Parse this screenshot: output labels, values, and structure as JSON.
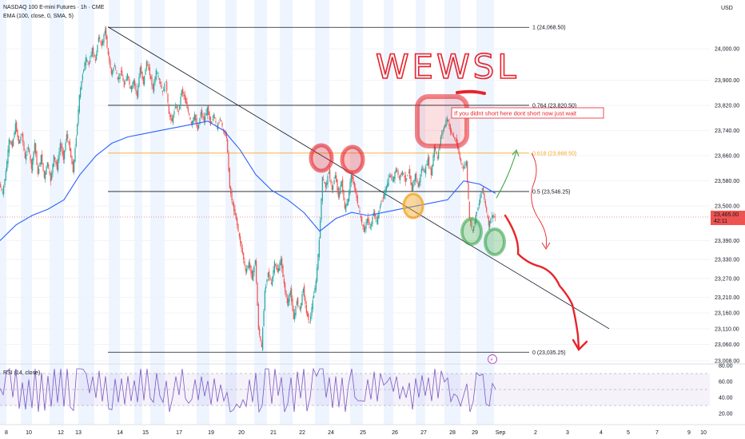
{
  "header": {
    "symbol_line": "NASDAQ 100 E-mini Futures · 1h · CME",
    "indicator_line": "EMA (100, close, 0, SMA, 5)",
    "currency": "USD",
    "rsi_label": "RSI (14, close)"
  },
  "colors": {
    "up": "#26a69a",
    "down": "#ef5350",
    "ema": "#2962ff",
    "rsi": "#7e57c2",
    "fib_618": "#f5a623",
    "ink": "#e8232a",
    "green_ink": "#2e9e3e",
    "session_band": "#e3efff"
  },
  "chart_data": [
    {
      "type": "candlestick",
      "ylim": [
        23008,
        24130
      ],
      "y_ticks": [
        "24,000.00",
        "23,900.00",
        "23,820.00",
        "23,740.00",
        "23,660.00",
        "23,580.00",
        "23,500.00",
        "23,390.00",
        "23,330.00",
        "23,270.00",
        "23,210.00",
        "23,160.00",
        "23,110.00",
        "23,060.00",
        "23,008.00"
      ],
      "x_ticks": [
        "8",
        "10",
        "12",
        "13",
        "14",
        "15",
        "17",
        "19",
        "20",
        "21",
        "22",
        "24",
        "25",
        "26",
        "27",
        "28",
        "29",
        "Sep",
        "2",
        "3",
        "4",
        "5",
        "7",
        "9",
        "10"
      ],
      "price_tag": {
        "value": "23,465.00",
        "countdown": "42:11"
      },
      "fib_levels": [
        {
          "label": "1 (24,068.50)",
          "value": 24068.5
        },
        {
          "label": "0.764 (23,820.50)",
          "value": 23820.5
        },
        {
          "label": "0.618 (23,668.50)",
          "value": 23668.5
        },
        {
          "label": "0.5 (23,546.25)",
          "value": 23546.25
        },
        {
          "label": "0 (23,035.25)",
          "value": 23035.25
        }
      ],
      "price_path": [
        [
          0,
          23570
        ],
        [
          4,
          23540
        ],
        [
          8,
          23610
        ],
        [
          12,
          23710
        ],
        [
          16,
          23690
        ],
        [
          20,
          23760
        ],
        [
          24,
          23700
        ],
        [
          28,
          23730
        ],
        [
          32,
          23650
        ],
        [
          36,
          23690
        ],
        [
          40,
          23620
        ],
        [
          44,
          23700
        ],
        [
          48,
          23600
        ],
        [
          52,
          23660
        ],
        [
          56,
          23590
        ],
        [
          60,
          23640
        ],
        [
          64,
          23580
        ],
        [
          68,
          23660
        ],
        [
          72,
          23620
        ],
        [
          76,
          23700
        ],
        [
          80,
          23650
        ],
        [
          84,
          23730
        ],
        [
          88,
          23680
        ],
        [
          92,
          23610
        ],
        [
          96,
          23720
        ],
        [
          100,
          23850
        ],
        [
          104,
          23920
        ],
        [
          108,
          23970
        ],
        [
          112,
          23950
        ],
        [
          116,
          24000
        ],
        [
          120,
          23960
        ],
        [
          124,
          24040
        ],
        [
          128,
          24010
        ],
        [
          132,
          24060
        ],
        [
          136,
          23980
        ],
        [
          140,
          23920
        ],
        [
          144,
          23950
        ],
        [
          148,
          23900
        ],
        [
          152,
          23930
        ],
        [
          156,
          23880
        ],
        [
          160,
          23920
        ],
        [
          164,
          23870
        ],
        [
          168,
          23900
        ],
        [
          172,
          23850
        ],
        [
          176,
          23940
        ],
        [
          180,
          23890
        ],
        [
          184,
          23960
        ],
        [
          188,
          23920
        ],
        [
          192,
          23870
        ],
        [
          196,
          23930
        ],
        [
          200,
          23900
        ],
        [
          204,
          23860
        ],
        [
          208,
          23900
        ],
        [
          212,
          23790
        ],
        [
          216,
          23770
        ],
        [
          220,
          23820
        ],
        [
          224,
          23800
        ],
        [
          228,
          23870
        ],
        [
          232,
          23840
        ],
        [
          236,
          23800
        ],
        [
          240,
          23760
        ],
        [
          244,
          23790
        ],
        [
          248,
          23740
        ],
        [
          252,
          23800
        ],
        [
          256,
          23770
        ],
        [
          260,
          23810
        ],
        [
          264,
          23760
        ],
        [
          268,
          23790
        ],
        [
          272,
          23750
        ],
        [
          276,
          23780
        ],
        [
          280,
          23740
        ],
        [
          284,
          23720
        ],
        [
          288,
          23560
        ],
        [
          292,
          23500
        ],
        [
          296,
          23460
        ],
        [
          300,
          23400
        ],
        [
          304,
          23350
        ],
        [
          308,
          23290
        ],
        [
          312,
          23320
        ],
        [
          316,
          23270
        ],
        [
          320,
          23330
        ],
        [
          324,
          23110
        ],
        [
          328,
          23050
        ],
        [
          332,
          23230
        ],
        [
          336,
          23290
        ],
        [
          340,
          23250
        ],
        [
          344,
          23320
        ],
        [
          348,
          23290
        ],
        [
          352,
          23330
        ],
        [
          356,
          23250
        ],
        [
          360,
          23190
        ],
        [
          364,
          23230
        ],
        [
          368,
          23140
        ],
        [
          372,
          23200
        ],
        [
          376,
          23170
        ],
        [
          380,
          23240
        ],
        [
          384,
          23160
        ],
        [
          388,
          23130
        ],
        [
          392,
          23200
        ],
        [
          396,
          23260
        ],
        [
          400,
          23390
        ],
        [
          404,
          23590
        ],
        [
          408,
          23560
        ],
        [
          412,
          23610
        ],
        [
          416,
          23550
        ],
        [
          420,
          23600
        ],
        [
          424,
          23530
        ],
        [
          428,
          23580
        ],
        [
          432,
          23490
        ],
        [
          436,
          23520
        ],
        [
          440,
          23600
        ],
        [
          444,
          23560
        ],
        [
          448,
          23510
        ],
        [
          452,
          23460
        ],
        [
          456,
          23420
        ],
        [
          460,
          23460
        ],
        [
          464,
          23430
        ],
        [
          468,
          23480
        ],
        [
          472,
          23450
        ],
        [
          476,
          23500
        ],
        [
          480,
          23530
        ],
        [
          484,
          23560
        ],
        [
          488,
          23600
        ],
        [
          492,
          23580
        ],
        [
          496,
          23620
        ],
        [
          500,
          23590
        ],
        [
          504,
          23610
        ],
        [
          508,
          23580
        ],
        [
          512,
          23610
        ],
        [
          516,
          23550
        ],
        [
          520,
          23600
        ],
        [
          524,
          23560
        ],
        [
          528,
          23620
        ],
        [
          532,
          23610
        ],
        [
          536,
          23650
        ],
        [
          540,
          23600
        ],
        [
          544,
          23690
        ],
        [
          548,
          23650
        ],
        [
          552,
          23720
        ],
        [
          556,
          23750
        ],
        [
          560,
          23780
        ],
        [
          564,
          23740
        ],
        [
          568,
          23720
        ],
        [
          572,
          23700
        ],
        [
          576,
          23650
        ],
        [
          580,
          23620
        ],
        [
          584,
          23640
        ],
        [
          588,
          23460
        ],
        [
          592,
          23420
        ],
        [
          596,
          23470
        ],
        [
          600,
          23510
        ],
        [
          604,
          23560
        ],
        [
          608,
          23500
        ],
        [
          612,
          23440
        ],
        [
          616,
          23470
        ],
        [
          620,
          23465
        ]
      ],
      "ema_path": [
        [
          0,
          23390
        ],
        [
          20,
          23440
        ],
        [
          40,
          23470
        ],
        [
          60,
          23490
        ],
        [
          80,
          23520
        ],
        [
          100,
          23600
        ],
        [
          120,
          23660
        ],
        [
          140,
          23700
        ],
        [
          160,
          23720
        ],
        [
          180,
          23730
        ],
        [
          200,
          23740
        ],
        [
          220,
          23750
        ],
        [
          240,
          23760
        ],
        [
          260,
          23770
        ],
        [
          280,
          23740
        ],
        [
          300,
          23680
        ],
        [
          320,
          23600
        ],
        [
          340,
          23550
        ],
        [
          360,
          23520
        ],
        [
          380,
          23480
        ],
        [
          400,
          23420
        ],
        [
          420,
          23460
        ],
        [
          440,
          23480
        ],
        [
          460,
          23470
        ],
        [
          480,
          23480
        ],
        [
          500,
          23490
        ],
        [
          520,
          23500
        ],
        [
          540,
          23510
        ],
        [
          560,
          23520
        ],
        [
          580,
          23580
        ],
        [
          600,
          23570
        ],
        [
          620,
          23540
        ]
      ],
      "trendline": {
        "from": [
          135,
          24070
        ],
        "to": [
          762,
          23110
        ]
      }
    },
    {
      "type": "line",
      "title": "RSI",
      "ylim": [
        18,
        82
      ],
      "y_ticks": [
        "80.00",
        "60.00",
        "40.00",
        "20.00"
      ],
      "band": [
        30,
        70
      ]
    }
  ],
  "annotations": {
    "handwritten_word": "WEWSL",
    "note": "If you didnt short here dont short now just wait",
    "alert_icon_glyph": "⚡"
  }
}
